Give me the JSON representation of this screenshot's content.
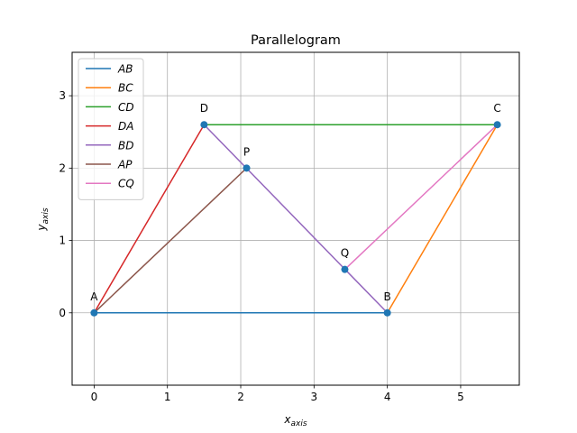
{
  "chart_data": {
    "type": "line",
    "title": "Parallelogram",
    "xlabel_parts": [
      "x",
      "axis"
    ],
    "ylabel_parts": [
      "y",
      "axis"
    ],
    "xlim": [
      -0.3,
      5.8
    ],
    "ylim": [
      -1.0,
      3.6
    ],
    "xticks": [
      0,
      1,
      2,
      3,
      4,
      5
    ],
    "yticks": [
      0,
      1,
      2,
      3
    ],
    "grid": true,
    "legend_position": "top-left",
    "points": [
      {
        "label": "A",
        "x": 0.0,
        "y": 0.0
      },
      {
        "label": "B",
        "x": 4.0,
        "y": 0.0
      },
      {
        "label": "C",
        "x": 5.5,
        "y": 2.6
      },
      {
        "label": "D",
        "x": 1.5,
        "y": 2.6
      },
      {
        "label": "P",
        "x": 2.08,
        "y": 2.0
      },
      {
        "label": "Q",
        "x": 3.42,
        "y": 0.6
      }
    ],
    "series": [
      {
        "name": "AB",
        "color": "#1f77b4",
        "x": [
          0.0,
          4.0
        ],
        "y": [
          0.0,
          0.0
        ]
      },
      {
        "name": "BC",
        "color": "#ff7f0e",
        "x": [
          4.0,
          5.5
        ],
        "y": [
          0.0,
          2.6
        ]
      },
      {
        "name": "CD",
        "color": "#2ca02c",
        "x": [
          5.5,
          1.5
        ],
        "y": [
          2.6,
          2.6
        ]
      },
      {
        "name": "DA",
        "color": "#d62728",
        "x": [
          1.5,
          0.0
        ],
        "y": [
          2.6,
          0.0
        ]
      },
      {
        "name": "BD",
        "color": "#9467bd",
        "x": [
          4.0,
          1.5
        ],
        "y": [
          0.0,
          2.6
        ]
      },
      {
        "name": "AP",
        "color": "#8c564b",
        "x": [
          0.0,
          2.08
        ],
        "y": [
          0.0,
          2.0
        ]
      },
      {
        "name": "CQ",
        "color": "#e377c2",
        "x": [
          5.5,
          3.42
        ],
        "y": [
          2.6,
          0.6
        ]
      }
    ],
    "marker_color": "#1f77b4"
  }
}
